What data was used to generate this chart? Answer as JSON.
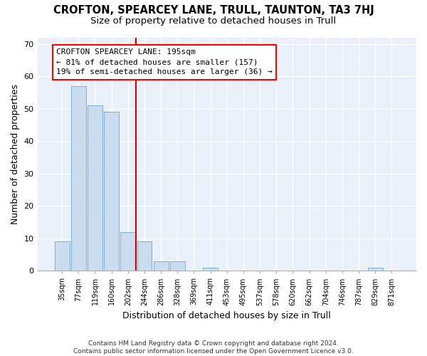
{
  "title1": "CROFTON, SPEARCEY LANE, TRULL, TAUNTON, TA3 7HJ",
  "title2": "Size of property relative to detached houses in Trull",
  "xlabel": "Distribution of detached houses by size in Trull",
  "ylabel": "Number of detached properties",
  "footer": "Contains HM Land Registry data © Crown copyright and database right 2024.\nContains public sector information licensed under the Open Government Licence v3.0.",
  "categories": [
    "35sqm",
    "77sqm",
    "119sqm",
    "160sqm",
    "202sqm",
    "244sqm",
    "286sqm",
    "328sqm",
    "369sqm",
    "411sqm",
    "453sqm",
    "495sqm",
    "537sqm",
    "578sqm",
    "620sqm",
    "662sqm",
    "704sqm",
    "746sqm",
    "787sqm",
    "829sqm",
    "871sqm"
  ],
  "values": [
    9,
    57,
    51,
    49,
    12,
    9,
    3,
    3,
    0,
    1,
    0,
    0,
    0,
    0,
    0,
    0,
    0,
    0,
    0,
    1,
    0
  ],
  "bar_color": "#c9dcf0",
  "bar_edge_color": "#7aafd4",
  "vline_x_index": 4.5,
  "vline_color": "#cc0000",
  "annotation_line1": "CROFTON SPEARCEY LANE: 195sqm",
  "annotation_line2": "← 81% of detached houses are smaller (157)",
  "annotation_line3": "19% of semi-detached houses are larger (36) →",
  "ylim": [
    0,
    72
  ],
  "yticks": [
    0,
    10,
    20,
    30,
    40,
    50,
    60,
    70
  ],
  "bg_color": "#eaf0fa",
  "grid_color": "#ffffff",
  "title1_fontsize": 10.5,
  "title2_fontsize": 9.5,
  "annotation_fontsize": 8,
  "footer_fontsize": 6.5,
  "axis_label_fontsize": 9,
  "tick_fontsize": 8,
  "xtick_fontsize": 7
}
